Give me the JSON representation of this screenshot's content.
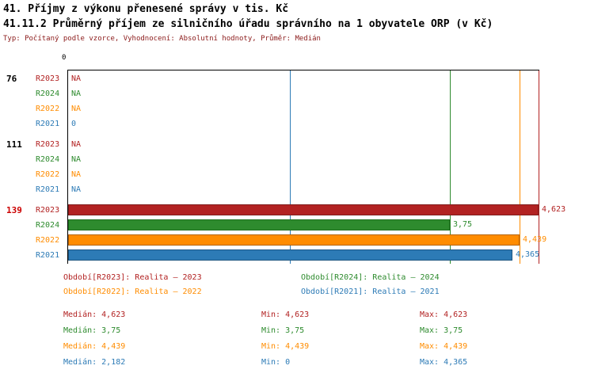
{
  "header": {
    "title1": "41. Příjmy z výkonu přenesené správy v tis. Kč",
    "title2": "41.11.2 Průměrný příjem ze silničního úřadu správního na 1 obyvatele ORP (v Kč)",
    "subtitle": "Typ: Počítaný podle vzorce, Vyhodnocení: Absolutní hodnoty, Průměr: Medián"
  },
  "colors": {
    "R2023": "#b22222",
    "R2024": "#2e8b2e",
    "R2022": "#ff8c00",
    "R2021": "#2d7bb6",
    "bar_borders": {
      "R2023": "#7f1d1d",
      "R2024": "#1d6b1d",
      "R2022": "#b36200",
      "R2021": "#1d5580"
    },
    "highlight_id": "#cc0000",
    "normal_id": "#000000",
    "subtitle": "#8b1a1a"
  },
  "chart_data": {
    "type": "bar",
    "orientation": "horizontal",
    "title": "41.11.2 Průměrný příjem ze silničního úřadu správního na 1 obyvatele ORP (v Kč)",
    "x_axis": {
      "zero_label": "0",
      "xlim": [
        0,
        4.623
      ],
      "grid": false
    },
    "legend_position": "bottom",
    "series_order": [
      "R2023",
      "R2024",
      "R2022",
      "R2021"
    ],
    "groups": [
      {
        "id": "76",
        "highlight": false,
        "rows": [
          {
            "year": "R2023",
            "label": "NA",
            "value": null
          },
          {
            "year": "R2024",
            "label": "NA",
            "value": null
          },
          {
            "year": "R2022",
            "label": "NA",
            "value": null
          },
          {
            "year": "R2021",
            "label": "0",
            "value": 0
          }
        ]
      },
      {
        "id": "111",
        "highlight": false,
        "rows": [
          {
            "year": "R2023",
            "label": "NA",
            "value": null
          },
          {
            "year": "R2024",
            "label": "NA",
            "value": null
          },
          {
            "year": "R2022",
            "label": "NA",
            "value": null
          },
          {
            "year": "R2021",
            "label": "NA",
            "value": null
          }
        ]
      },
      {
        "id": "139",
        "highlight": true,
        "rows": [
          {
            "year": "R2023",
            "label": "4,623",
            "value": 4.623
          },
          {
            "year": "R2024",
            "label": "3,75",
            "value": 3.75
          },
          {
            "year": "R2022",
            "label": "4,439",
            "value": 4.439
          },
          {
            "year": "R2021",
            "label": "4,365",
            "value": 4.365
          }
        ]
      }
    ],
    "median_lines": [
      {
        "year": "R2023",
        "value": 4.623
      },
      {
        "year": "R2024",
        "value": 3.75
      },
      {
        "year": "R2022",
        "value": 4.439
      },
      {
        "year": "R2021",
        "value": 2.182
      }
    ]
  },
  "legend": [
    {
      "year": "R2023",
      "label": "Období[R2023]: Realita – 2023"
    },
    {
      "year": "R2024",
      "label": "Období[R2024]: Realita – 2024"
    },
    {
      "year": "R2022",
      "label": "Období[R2022]: Realita – 2022"
    },
    {
      "year": "R2021",
      "label": "Období[R2021]: Realita – 2021"
    }
  ],
  "stats": [
    {
      "year": "R2023",
      "median": "Medián: 4,623",
      "min": "Min: 4,623",
      "max": "Max: 4,623"
    },
    {
      "year": "R2024",
      "median": "Medián: 3,75",
      "min": "Min: 3,75",
      "max": "Max: 3,75"
    },
    {
      "year": "R2022",
      "median": "Medián: 4,439",
      "min": "Min: 4,439",
      "max": "Max: 4,439"
    },
    {
      "year": "R2021",
      "median": "Medián: 2,182",
      "min": "Min: 0",
      "max": "Max: 4,365"
    }
  ]
}
